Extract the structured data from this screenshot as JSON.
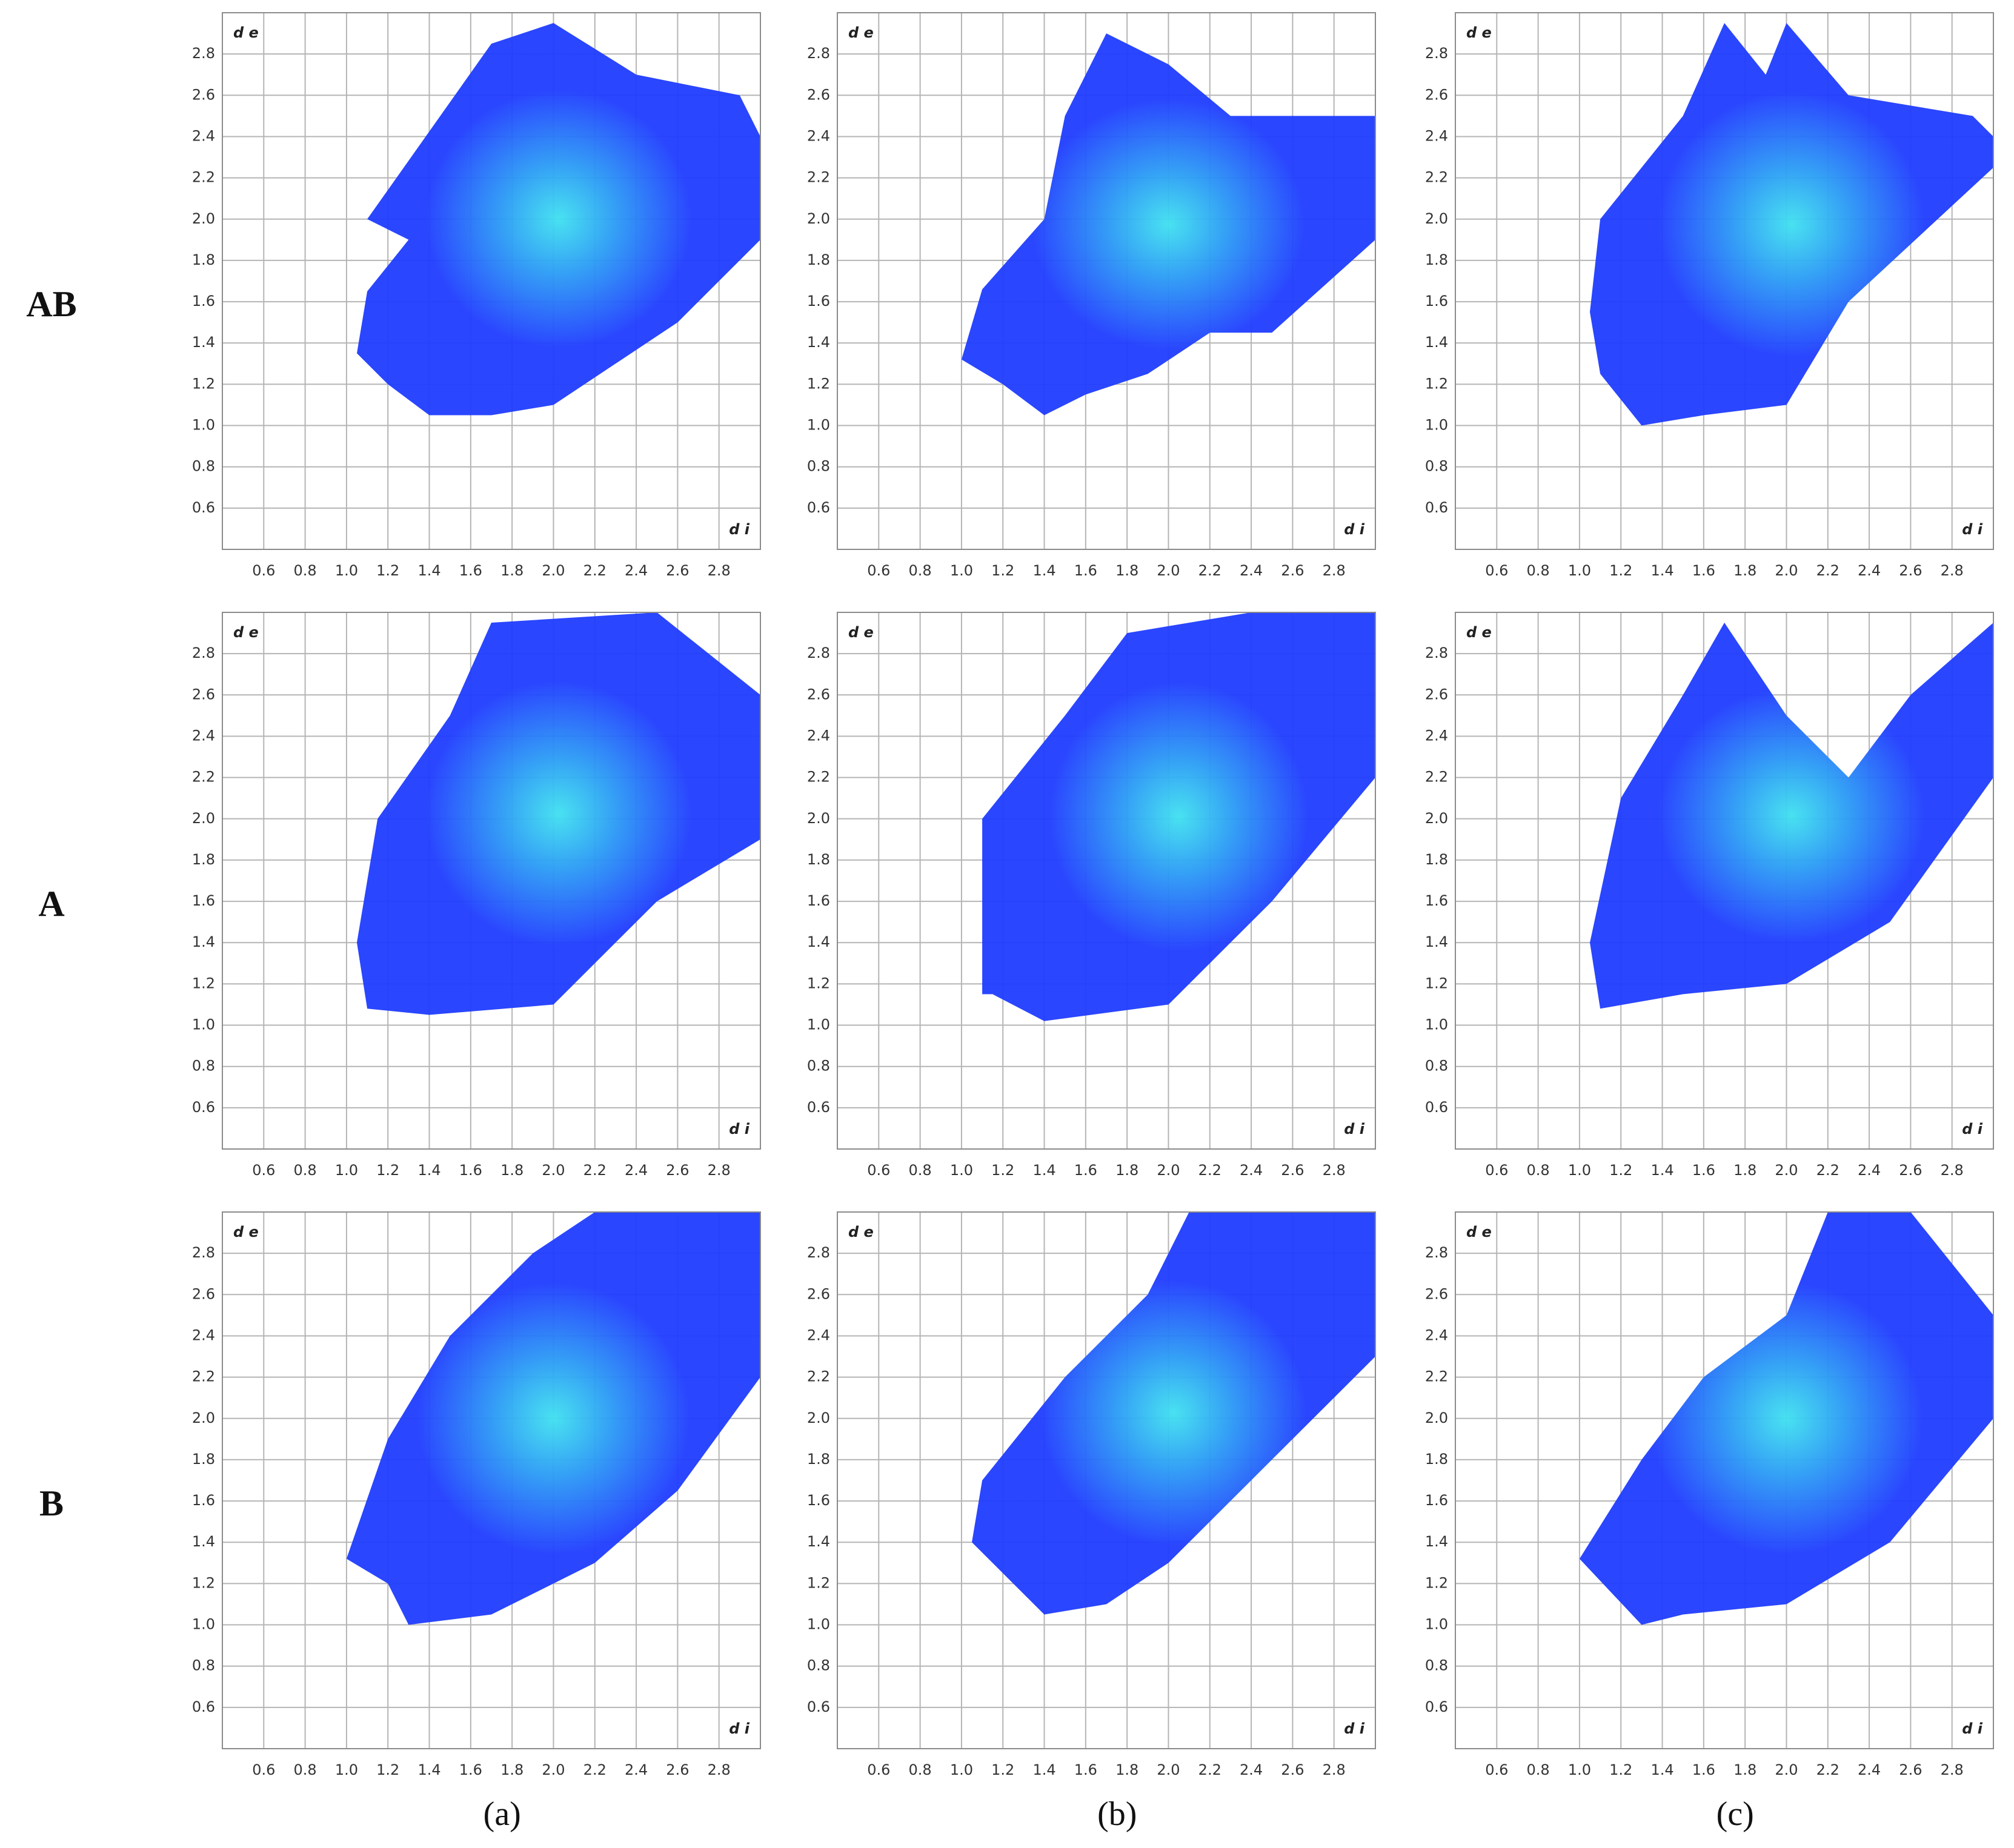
{
  "row_labels": [
    "AB",
    "A",
    "B"
  ],
  "column_labels": [
    "(a)",
    "(b)",
    "(c)"
  ],
  "chart_data": [
    {
      "type": "fingerprint",
      "xlabel": "d i",
      "ylabel": "d e",
      "color": "#1f3cff",
      "xlim": [
        0.4,
        3.0
      ],
      "ylim": [
        0.4,
        3.0
      ],
      "xticks": [
        0.6,
        0.8,
        {
          "value": 1,
          "label": "1.0"
        },
        1.2,
        1.4,
        1.6,
        1.8,
        {
          "value": 2,
          "label": "2.0"
        },
        2.2,
        2.4,
        2.6,
        2.8
      ],
      "yticks": [
        0.6,
        0.8,
        {
          "value": 1,
          "label": "1.0"
        },
        1.2,
        1.4,
        1.6,
        1.8,
        {
          "value": 2,
          "label": "2.0"
        },
        2.2,
        2.4,
        2.6,
        2.8
      ],
      "x": [
        1.1,
        1.7,
        2.0,
        2.4,
        2.9,
        3.0,
        3.0,
        2.6,
        2.0,
        1.7,
        1.4,
        1.2,
        1.05,
        1.1,
        1.3
      ],
      "values": [
        2.0,
        2.85,
        2.95,
        2.7,
        2.6,
        2.4,
        1.9,
        1.5,
        1.1,
        1.05,
        1.05,
        1.2,
        1.35,
        1.65,
        1.9
      ]
    },
    {
      "type": "fingerprint",
      "xlabel": "d i",
      "ylabel": "d e",
      "color": "#1f3cff",
      "xlim": [
        0.4,
        3.0
      ],
      "ylim": [
        0.4,
        3.0
      ],
      "xticks": [
        0.6,
        0.8,
        {
          "value": 1,
          "label": "1.0"
        },
        1.2,
        1.4,
        1.6,
        1.8,
        {
          "value": 2,
          "label": "2.0"
        },
        2.2,
        2.4,
        2.6,
        2.8
      ],
      "yticks": [
        0.6,
        0.8,
        {
          "value": 1,
          "label": "1.0"
        },
        1.2,
        1.4,
        1.6,
        1.8,
        {
          "value": 2,
          "label": "2.0"
        },
        2.2,
        2.4,
        2.6,
        2.8
      ],
      "x": [
        1.0,
        1.1,
        1.4,
        1.5,
        1.7,
        2.0,
        2.3,
        2.6,
        3.0,
        3.0,
        2.5,
        2.2,
        1.9,
        1.6,
        1.4,
        1.2
      ],
      "values": [
        1.32,
        1.66,
        2.0,
        2.5,
        2.9,
        2.75,
        2.5,
        2.5,
        2.5,
        1.9,
        1.45,
        1.45,
        1.25,
        1.15,
        1.05,
        1.2
      ]
    },
    {
      "type": "fingerprint",
      "xlabel": "d i",
      "ylabel": "d e",
      "color": "#1f3cff",
      "xlim": [
        0.4,
        3.0
      ],
      "ylim": [
        0.4,
        3.0
      ],
      "xticks": [
        0.6,
        0.8,
        {
          "value": 1,
          "label": "1.0"
        },
        1.2,
        1.4,
        1.6,
        1.8,
        {
          "value": 2,
          "label": "2.0"
        },
        2.2,
        2.4,
        2.6,
        2.8
      ],
      "yticks": [
        0.6,
        0.8,
        {
          "value": 1,
          "label": "1.0"
        },
        1.2,
        1.4,
        1.6,
        1.8,
        {
          "value": 2,
          "label": "2.0"
        },
        2.2,
        2.4,
        2.6,
        2.8
      ],
      "x": [
        1.1,
        1.5,
        1.7,
        1.9,
        2.0,
        2.3,
        2.9,
        3.0,
        3.0,
        2.3,
        2.0,
        1.6,
        1.3,
        1.1,
        1.05
      ],
      "values": [
        2.0,
        2.5,
        2.95,
        2.7,
        2.95,
        2.6,
        2.5,
        2.4,
        2.25,
        1.6,
        1.1,
        1.05,
        1.0,
        1.25,
        1.55
      ]
    },
    {
      "type": "fingerprint",
      "xlabel": "d i",
      "ylabel": "d e",
      "color": "#1f3cff",
      "xlim": [
        0.4,
        3.0
      ],
      "ylim": [
        0.4,
        3.0
      ],
      "xticks": [
        0.6,
        0.8,
        {
          "value": 1,
          "label": "1.0"
        },
        1.2,
        1.4,
        1.6,
        1.8,
        {
          "value": 2,
          "label": "2.0"
        },
        2.2,
        2.4,
        2.6,
        2.8
      ],
      "yticks": [
        0.6,
        0.8,
        {
          "value": 1,
          "label": "1.0"
        },
        1.2,
        1.4,
        1.6,
        1.8,
        {
          "value": 2,
          "label": "2.0"
        },
        2.2,
        2.4,
        2.6,
        2.8
      ],
      "x": [
        1.05,
        1.15,
        1.5,
        1.7,
        2.5,
        3.0,
        3.0,
        2.5,
        2.0,
        1.4,
        1.1
      ],
      "values": [
        1.4,
        2.0,
        2.5,
        2.95,
        3.0,
        2.6,
        1.9,
        1.6,
        1.1,
        1.05,
        1.08
      ]
    },
    {
      "type": "fingerprint",
      "xlabel": "d i",
      "ylabel": "d e",
      "color": "#1f3cff",
      "xlim": [
        0.4,
        3.0
      ],
      "ylim": [
        0.4,
        3.0
      ],
      "xticks": [
        0.6,
        0.8,
        {
          "value": 1,
          "label": "1.0"
        },
        1.2,
        1.4,
        1.6,
        1.8,
        {
          "value": 2,
          "label": "2.0"
        },
        2.2,
        2.4,
        2.6,
        2.8
      ],
      "yticks": [
        0.6,
        0.8,
        {
          "value": 1,
          "label": "1.0"
        },
        1.2,
        1.4,
        1.6,
        1.8,
        {
          "value": 2,
          "label": "2.0"
        },
        2.2,
        2.4,
        2.6,
        2.8
      ],
      "x": [
        1.1,
        1.1,
        1.5,
        1.8,
        2.4,
        3.0,
        3.0,
        2.5,
        2.0,
        1.4,
        1.15
      ],
      "values": [
        1.15,
        2.0,
        2.5,
        2.9,
        3.0,
        3.0,
        2.2,
        1.6,
        1.1,
        1.02,
        1.15
      ]
    },
    {
      "type": "fingerprint",
      "xlabel": "d i",
      "ylabel": "d e",
      "color": "#1f3cff",
      "xlim": [
        0.4,
        3.0
      ],
      "ylim": [
        0.4,
        3.0
      ],
      "xticks": [
        0.6,
        0.8,
        {
          "value": 1,
          "label": "1.0"
        },
        1.2,
        1.4,
        1.6,
        1.8,
        {
          "value": 2,
          "label": "2.0"
        },
        2.2,
        2.4,
        2.6,
        2.8
      ],
      "yticks": [
        0.6,
        0.8,
        {
          "value": 1,
          "label": "1.0"
        },
        1.2,
        1.4,
        1.6,
        1.8,
        {
          "value": 2,
          "label": "2.0"
        },
        2.2,
        2.4,
        2.6,
        2.8
      ],
      "x": [
        1.05,
        1.2,
        1.5,
        1.7,
        2.0,
        2.3,
        2.6,
        3.0,
        3.0,
        2.5,
        2.0,
        1.5,
        1.1
      ],
      "values": [
        1.4,
        2.1,
        2.6,
        2.95,
        2.5,
        2.2,
        2.6,
        2.95,
        2.2,
        1.5,
        1.2,
        1.15,
        1.08
      ]
    },
    {
      "type": "fingerprint",
      "xlabel": "d i",
      "ylabel": "d e",
      "color": "#1f3cff",
      "xlim": [
        0.4,
        3.0
      ],
      "ylim": [
        0.4,
        3.0
      ],
      "xticks": [
        0.6,
        0.8,
        {
          "value": 1,
          "label": "1.0"
        },
        1.2,
        1.4,
        1.6,
        1.8,
        {
          "value": 2,
          "label": "2.0"
        },
        2.2,
        2.4,
        2.6,
        2.8
      ],
      "yticks": [
        0.6,
        0.8,
        {
          "value": 1,
          "label": "1.0"
        },
        1.2,
        1.4,
        1.6,
        1.8,
        {
          "value": 2,
          "label": "2.0"
        },
        2.2,
        2.4,
        2.6,
        2.8
      ],
      "x": [
        1.0,
        1.2,
        1.5,
        1.9,
        2.2,
        3.0,
        3.0,
        2.6,
        2.2,
        1.7,
        1.3,
        1.2
      ],
      "values": [
        1.32,
        1.9,
        2.4,
        2.8,
        3.0,
        3.0,
        2.2,
        1.65,
        1.3,
        1.05,
        1.0,
        1.2
      ]
    },
    {
      "type": "fingerprint",
      "xlabel": "d i",
      "ylabel": "d e",
      "color": "#1f3cff",
      "xlim": [
        0.4,
        3.0
      ],
      "ylim": [
        0.4,
        3.0
      ],
      "xticks": [
        0.6,
        0.8,
        {
          "value": 1,
          "label": "1.0"
        },
        1.2,
        1.4,
        1.6,
        1.8,
        {
          "value": 2,
          "label": "2.0"
        },
        2.2,
        2.4,
        2.6,
        2.8
      ],
      "yticks": [
        0.6,
        0.8,
        {
          "value": 1,
          "label": "1.0"
        },
        1.2,
        1.4,
        1.6,
        1.8,
        {
          "value": 2,
          "label": "2.0"
        },
        2.2,
        2.4,
        2.6,
        2.8
      ],
      "x": [
        1.05,
        1.1,
        1.5,
        1.9,
        2.1,
        3.0,
        3.0,
        2.5,
        2.0,
        1.7,
        1.4,
        1.1
      ],
      "values": [
        1.4,
        1.7,
        2.2,
        2.6,
        3.0,
        3.0,
        2.3,
        1.8,
        1.3,
        1.1,
        1.05,
        1.35
      ]
    },
    {
      "type": "fingerprint",
      "xlabel": "d i",
      "ylabel": "d e",
      "color": "#1f3cff",
      "xlim": [
        0.4,
        3.0
      ],
      "ylim": [
        0.4,
        3.0
      ],
      "xticks": [
        0.6,
        0.8,
        {
          "value": 1,
          "label": "1.0"
        },
        1.2,
        1.4,
        1.6,
        1.8,
        {
          "value": 2,
          "label": "2.0"
        },
        2.2,
        2.4,
        2.6,
        2.8
      ],
      "yticks": [
        0.6,
        0.8,
        {
          "value": 1,
          "label": "1.0"
        },
        1.2,
        1.4,
        1.6,
        1.8,
        {
          "value": 2,
          "label": "2.0"
        },
        2.2,
        2.4,
        2.6,
        2.8
      ],
      "x": [
        1.0,
        1.3,
        1.6,
        2.0,
        2.2,
        2.6,
        3.0,
        3.0,
        2.5,
        2.0,
        1.5,
        1.3
      ],
      "values": [
        1.32,
        1.8,
        2.2,
        2.5,
        3.0,
        3.0,
        2.5,
        2.0,
        1.4,
        1.1,
        1.05,
        1.0
      ]
    }
  ]
}
